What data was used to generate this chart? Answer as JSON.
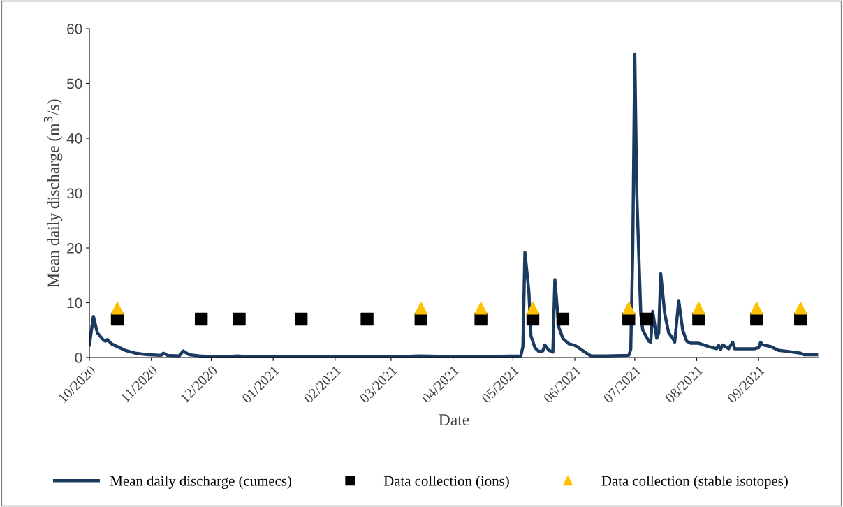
{
  "chart_data": {
    "type": "line",
    "xlabel": "Date",
    "ylabel": "Mean daily discharge (m$^{3}$/s)",
    "xlim": [
      "2020-10-01",
      "2021-10-01"
    ],
    "xticks": [
      {
        "value": "2020-10-01",
        "label": "10/2020"
      },
      {
        "value": "2020-11-01",
        "label": "11/2020"
      },
      {
        "value": "2020-12-01",
        "label": "12/2020"
      },
      {
        "value": "2021-01-01",
        "label": "01/2021"
      },
      {
        "value": "2021-02-01",
        "label": "02/2021"
      },
      {
        "value": "2021-03-01",
        "label": "03/2021"
      },
      {
        "value": "2021-04-01",
        "label": "04/2021"
      },
      {
        "value": "2021-05-01",
        "label": "05/2021"
      },
      {
        "value": "2021-06-01",
        "label": "06/2021"
      },
      {
        "value": "2021-07-01",
        "label": "07/2021"
      },
      {
        "value": "2021-08-01",
        "label": "08/2021"
      },
      {
        "value": "2021-09-01",
        "label": "09/2021"
      }
    ],
    "ylim": [
      0,
      60
    ],
    "yticks": [
      0,
      10,
      20,
      30,
      40,
      50,
      60
    ],
    "grid": false,
    "legend": "bottom",
    "series": [
      {
        "name": "Mean daily discharge (cumecs)",
        "color": "#1b3a5f",
        "marker": "none",
        "line_style": "solid",
        "x": [
          "2020-10-01",
          "2020-10-03",
          "2020-10-05",
          "2020-10-08",
          "2020-10-09",
          "2020-10-10",
          "2020-10-12",
          "2020-10-16",
          "2020-10-19",
          "2020-10-24",
          "2020-10-28",
          "2020-10-31",
          "2020-11-06",
          "2020-11-07",
          "2020-11-09",
          "2020-11-15",
          "2020-11-17",
          "2020-11-20",
          "2020-11-25",
          "2020-11-30",
          "2020-12-11",
          "2020-12-14",
          "2020-12-21",
          "2021-01-04",
          "2021-02-08",
          "2021-03-01",
          "2021-03-15",
          "2021-03-29",
          "2021-04-19",
          "2021-05-05",
          "2021-05-06",
          "2021-05-07",
          "2021-05-09",
          "2021-05-10",
          "2021-05-12",
          "2021-05-14",
          "2021-05-16",
          "2021-05-17",
          "2021-05-19",
          "2021-05-21",
          "2021-05-22",
          "2021-05-24",
          "2021-05-26",
          "2021-05-29",
          "2021-06-01",
          "2021-06-04",
          "2021-06-06",
          "2021-06-09",
          "2021-06-17",
          "2021-06-28",
          "2021-06-29",
          "2021-06-30",
          "2021-07-01",
          "2021-07-02",
          "2021-07-04",
          "2021-07-05",
          "2021-07-08",
          "2021-07-09",
          "2021-07-10",
          "2021-07-12",
          "2021-07-13",
          "2021-07-14",
          "2021-07-16",
          "2021-07-18",
          "2021-07-20",
          "2021-07-21",
          "2021-07-23",
          "2021-07-25",
          "2021-07-27",
          "2021-07-29",
          "2021-08-02",
          "2021-08-07",
          "2021-08-11",
          "2021-08-12",
          "2021-08-13",
          "2021-08-14",
          "2021-08-17",
          "2021-08-19",
          "2021-08-20",
          "2021-08-30",
          "2021-09-01",
          "2021-09-02",
          "2021-09-03",
          "2021-09-07",
          "2021-09-11",
          "2021-09-16",
          "2021-09-22",
          "2021-09-24",
          "2021-09-30"
        ],
        "values": [
          2.3,
          7.5,
          4.5,
          3.2,
          3.0,
          3.3,
          2.5,
          1.8,
          1.3,
          0.8,
          0.6,
          0.5,
          0.4,
          0.8,
          0.4,
          0.3,
          1.2,
          0.5,
          0.3,
          0.2,
          0.2,
          0.3,
          0.1,
          0.1,
          0.1,
          0.1,
          0.3,
          0.2,
          0.2,
          0.3,
          2,
          19.2,
          12,
          4,
          1.8,
          1.1,
          1.2,
          2.3,
          1.3,
          1.0,
          14.2,
          5.5,
          3.5,
          2.5,
          2.2,
          1.5,
          1.0,
          0.3,
          0.3,
          0.4,
          1.5,
          20,
          55.3,
          30,
          8,
          5,
          3,
          2.8,
          8.4,
          3.5,
          4.5,
          15.3,
          8,
          4.5,
          3.5,
          2.8,
          10.4,
          5,
          3,
          2.6,
          2.6,
          2.0,
          1.6,
          2.2,
          1.5,
          2.3,
          1.6,
          2.8,
          1.6,
          1.6,
          1.8,
          2.8,
          2.3,
          2.0,
          1.3,
          1.1,
          0.8,
          0.5,
          0.5
        ]
      },
      {
        "name": "Data collection (ions)",
        "type": "scatter",
        "color": "#000000",
        "marker": "square",
        "x": [
          "2020-10-15",
          "2020-11-26",
          "2020-12-15",
          "2021-01-15",
          "2021-02-17",
          "2021-03-16",
          "2021-04-15",
          "2021-05-11",
          "2021-05-26",
          "2021-06-28",
          "2021-07-07",
          "2021-08-02",
          "2021-08-31",
          "2021-09-22"
        ],
        "values": [
          7,
          7,
          7,
          7,
          7,
          7,
          7,
          7,
          7,
          7,
          7,
          7,
          7,
          7
        ]
      },
      {
        "name": "Data collection (stable isotopes)",
        "type": "scatter",
        "color": "#ffc000",
        "marker": "triangle",
        "x": [
          "2020-10-15",
          "2021-03-16",
          "2021-04-15",
          "2021-05-11",
          "2021-06-28",
          "2021-08-02",
          "2021-08-31",
          "2021-09-22"
        ],
        "values": [
          9,
          9,
          9,
          9,
          9,
          9,
          9,
          9
        ]
      }
    ]
  }
}
